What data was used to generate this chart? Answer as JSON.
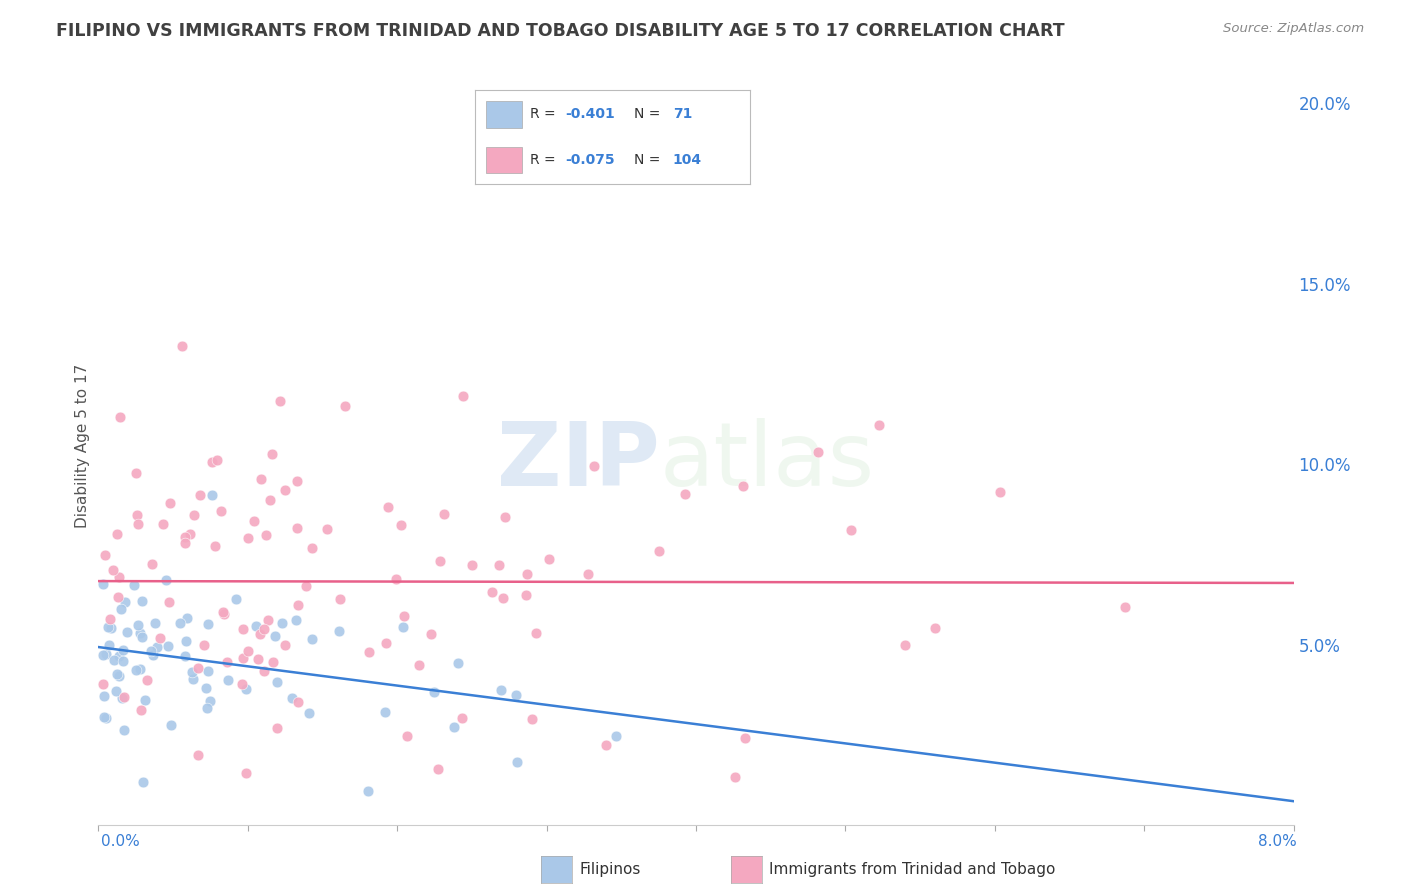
{
  "title": "FILIPINO VS IMMIGRANTS FROM TRINIDAD AND TOBAGO DISABILITY AGE 5 TO 17 CORRELATION CHART",
  "source": "Source: ZipAtlas.com",
  "ylabel": "Disability Age 5 to 17",
  "right_yticks": [
    "5.0%",
    "10.0%",
    "15.0%",
    "20.0%"
  ],
  "right_ytick_vals": [
    0.05,
    0.1,
    0.15,
    0.2
  ],
  "series1_label": "Filipinos",
  "series2_label": "Immigrants from Trinidad and Tobago",
  "series1_color": "#aac8e8",
  "series2_color": "#f4a8c0",
  "series1_line_color": "#3a7fd5",
  "series2_line_color": "#e8608a",
  "series1_R": -0.401,
  "series1_N": 71,
  "series2_R": -0.075,
  "series2_N": 104,
  "watermark_zip": "ZIP",
  "watermark_atlas": "atlas",
  "background_color": "#ffffff",
  "plot_background": "#ffffff",
  "grid_color": "#d8d8d8",
  "title_color": "#404040",
  "xmin": 0.0,
  "xmax": 0.08,
  "ymin": 0.0,
  "ymax": 0.21
}
